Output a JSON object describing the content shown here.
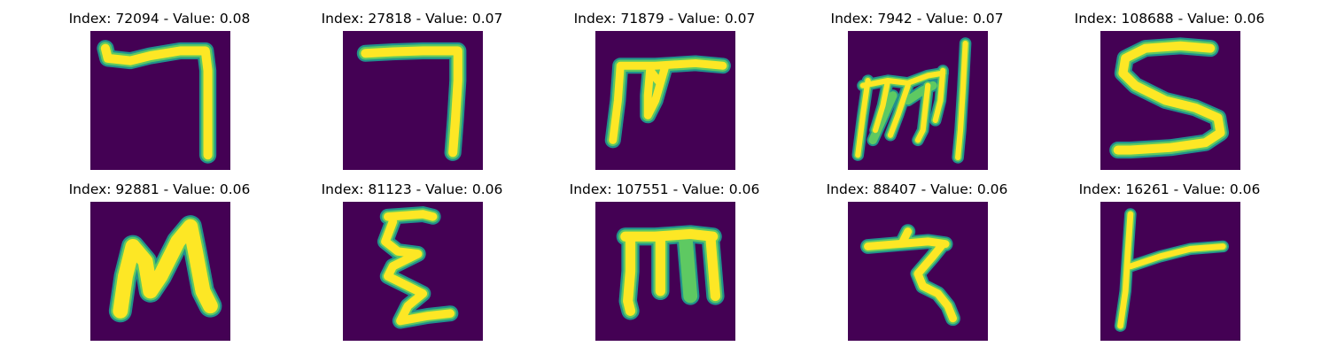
{
  "figure": {
    "colormap": "viridis",
    "background_color": "#440154",
    "stroke_color": "#fde725",
    "panels": [
      {
        "title": "Index: 72094 - Value: 0.08"
      },
      {
        "title": "Index: 27818 - Value: 0.07"
      },
      {
        "title": "Index: 71879 - Value: 0.07"
      },
      {
        "title": "Index: 7942 - Value: 0.07"
      },
      {
        "title": "Index: 108688 - Value: 0.06"
      },
      {
        "title": "Index: 92881 - Value: 0.06"
      },
      {
        "title": "Index: 81123 - Value: 0.06"
      },
      {
        "title": "Index: 107551 - Value: 0.06"
      },
      {
        "title": "Index: 88407 - Value: 0.06"
      },
      {
        "title": "Index: 16261 - Value: 0.06"
      }
    ]
  }
}
